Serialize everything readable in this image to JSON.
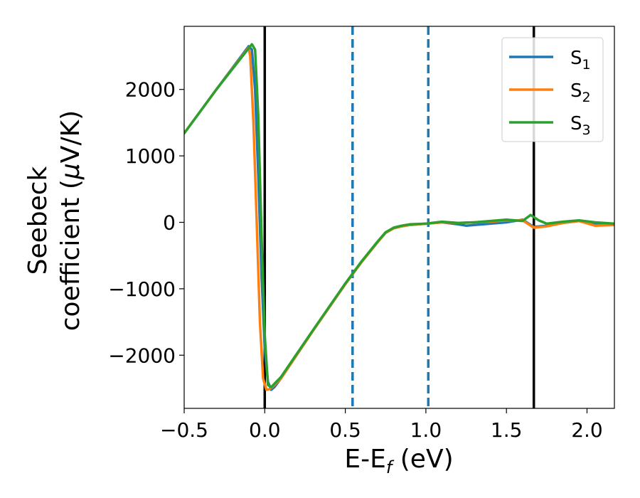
{
  "chart_data": {
    "type": "line",
    "xlabel": {
      "base": "E-E",
      "sub": "f",
      "unit": " (eV)"
    },
    "ylabel": {
      "line1": "Seebeck",
      "line2": "coefficient  (",
      "mu": "μ",
      "line2_end": "V/K)"
    },
    "xlim": [
      -0.5,
      2.17
    ],
    "ylim": [
      -2800,
      2950
    ],
    "xticks": [
      -0.5,
      0.0,
      0.5,
      1.0,
      1.5,
      2.0
    ],
    "xtick_labels": [
      "−0.5",
      "0.0",
      "0.5",
      "1.0",
      "1.5",
      "2.0"
    ],
    "yticks": [
      -2000,
      -1000,
      0,
      1000,
      2000
    ],
    "ytick_labels": [
      "−2000",
      "−1000",
      "0",
      "1000",
      "2000"
    ],
    "grid": false,
    "legend_position": "top-right",
    "vlines": [
      {
        "x": 0.0,
        "style": "solid",
        "color": "#000000"
      },
      {
        "x": 1.67,
        "style": "solid",
        "color": "#000000"
      },
      {
        "x": 0.545,
        "style": "dashed",
        "color": "#1f77b4"
      },
      {
        "x": 1.015,
        "style": "dashed",
        "color": "#1f77b4"
      }
    ],
    "series": [
      {
        "name": "S",
        "sub": "1",
        "color": "#1f77b4",
        "x": [
          -0.5,
          -0.3,
          -0.1,
          -0.08,
          -0.06,
          -0.04,
          -0.02,
          0.0,
          0.02,
          0.04,
          0.06,
          0.1,
          0.3,
          0.5,
          0.6,
          0.7,
          0.75,
          0.8,
          0.85,
          0.9,
          1.0,
          1.1,
          1.2,
          1.25,
          1.3,
          1.4,
          1.5,
          1.6,
          1.67,
          1.75,
          1.85,
          1.95,
          2.05,
          2.17
        ],
        "y": [
          1340,
          2000,
          2650,
          2600,
          2000,
          700,
          -800,
          -1900,
          -2400,
          -2520,
          -2480,
          -2350,
          -1630,
          -930,
          -600,
          -300,
          -160,
          -90,
          -60,
          -40,
          -20,
          0,
          -30,
          -50,
          -40,
          -20,
          0,
          40,
          -70,
          -50,
          -10,
          20,
          -30,
          -30
        ]
      },
      {
        "name": "S",
        "sub": "2",
        "color": "#ff7f0e",
        "x": [
          -0.5,
          -0.3,
          -0.1,
          -0.09,
          -0.07,
          -0.05,
          -0.03,
          -0.01,
          0.01,
          0.03,
          0.05,
          0.1,
          0.3,
          0.5,
          0.6,
          0.7,
          0.75,
          0.8,
          0.85,
          0.9,
          1.0,
          1.1,
          1.2,
          1.3,
          1.4,
          1.5,
          1.6,
          1.67,
          1.75,
          1.85,
          1.95,
          2.05,
          2.17
        ],
        "y": [
          1340,
          2000,
          2630,
          2500,
          1500,
          0,
          -1500,
          -2350,
          -2520,
          -2510,
          -2470,
          -2350,
          -1630,
          -930,
          -600,
          -300,
          -160,
          -90,
          -60,
          -40,
          -20,
          0,
          -10,
          0,
          10,
          30,
          30,
          -80,
          -60,
          -10,
          20,
          -50,
          -40
        ]
      },
      {
        "name": "S",
        "sub": "3",
        "color": "#2ca02c",
        "x": [
          -0.5,
          -0.3,
          -0.08,
          -0.06,
          -0.04,
          -0.02,
          0.0,
          0.02,
          0.04,
          0.06,
          0.1,
          0.3,
          0.5,
          0.6,
          0.7,
          0.75,
          0.8,
          0.85,
          0.9,
          1.0,
          1.1,
          1.2,
          1.3,
          1.4,
          1.5,
          1.6,
          1.65,
          1.7,
          1.75,
          1.85,
          1.95,
          2.05,
          2.17
        ],
        "y": [
          1340,
          2000,
          2680,
          2600,
          1600,
          -200,
          -1700,
          -2450,
          -2480,
          -2430,
          -2330,
          -1620,
          -920,
          -590,
          -290,
          -150,
          -80,
          -50,
          -30,
          -20,
          10,
          -10,
          0,
          20,
          40,
          20,
          110,
          30,
          -20,
          10,
          30,
          0,
          -20
        ]
      }
    ]
  }
}
